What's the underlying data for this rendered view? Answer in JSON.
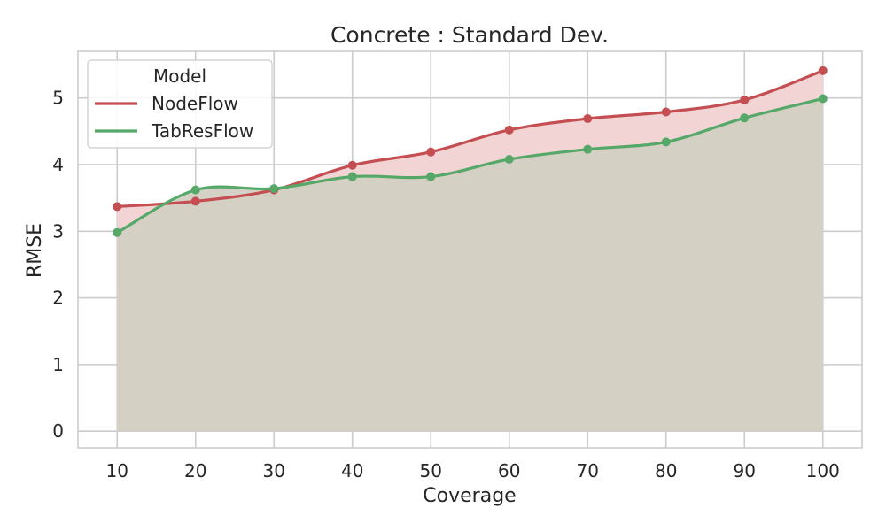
{
  "chart_data": {
    "type": "area",
    "title": "Concrete : Standard Dev.",
    "xlabel": "Coverage",
    "ylabel": "RMSE",
    "xlim": [
      5,
      105
    ],
    "ylim": [
      -0.25,
      5.7
    ],
    "xticks": [
      10,
      20,
      30,
      40,
      50,
      60,
      70,
      80,
      90,
      100
    ],
    "yticks": [
      0,
      1,
      2,
      3,
      4,
      5
    ],
    "grid": true,
    "legend": {
      "title": "Model",
      "placement": "top-left"
    },
    "x": [
      10,
      20,
      30,
      40,
      50,
      60,
      70,
      80,
      90,
      100
    ],
    "series": [
      {
        "name": "NodeFlow",
        "color": "#c44e52",
        "fill": "#f2d4d5",
        "values": [
          3.37,
          3.45,
          3.62,
          3.99,
          4.19,
          4.52,
          4.69,
          4.79,
          4.97,
          5.41
        ]
      },
      {
        "name": "TabResFlow",
        "color": "#55a868",
        "fill": "#d2d0c3",
        "values": [
          2.98,
          3.62,
          3.64,
          3.82,
          3.82,
          4.08,
          4.23,
          4.34,
          4.7,
          4.99
        ]
      }
    ]
  }
}
